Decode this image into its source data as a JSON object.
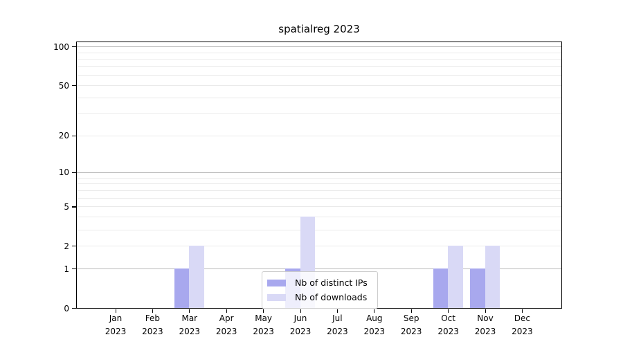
{
  "title": "spatialreg 2023",
  "colors": {
    "bar_ips": "#a8a8ee",
    "bar_downloads": "#d9d9f6",
    "grid_major": "#bbbbbb",
    "grid_minor": "#eaeaea",
    "spine": "#000000",
    "legend_border": "#cccccc"
  },
  "legend": {
    "entries": [
      {
        "label": "Nb of distinct IPs",
        "color": "#a8a8ee",
        "series_key": "ips"
      },
      {
        "label": "Nb of downloads",
        "color": "#d9d9f6",
        "series_key": "downloads"
      }
    ]
  },
  "chart_data": {
    "type": "bar",
    "title": "spatialreg 2023",
    "categories": [
      "Jan 2023",
      "Feb 2023",
      "Mar 2023",
      "Apr 2023",
      "May 2023",
      "Jun 2023",
      "Jul 2023",
      "Aug 2023",
      "Sep 2023",
      "Oct 2023",
      "Nov 2023",
      "Dec 2023"
    ],
    "x_ticks": [
      {
        "month": "Jan",
        "year": "2023"
      },
      {
        "month": "Feb",
        "year": "2023"
      },
      {
        "month": "Mar",
        "year": "2023"
      },
      {
        "month": "Apr",
        "year": "2023"
      },
      {
        "month": "May",
        "year": "2023"
      },
      {
        "month": "Jun",
        "year": "2023"
      },
      {
        "month": "Jul",
        "year": "2023"
      },
      {
        "month": "Aug",
        "year": "2023"
      },
      {
        "month": "Sep",
        "year": "2023"
      },
      {
        "month": "Oct",
        "year": "2023"
      },
      {
        "month": "Nov",
        "year": "2023"
      },
      {
        "month": "Dec",
        "year": "2023"
      }
    ],
    "series": [
      {
        "name": "Nb of distinct IPs",
        "key": "ips",
        "color": "#a8a8ee",
        "values": [
          0,
          0,
          1,
          0,
          0,
          1,
          0,
          0,
          0,
          1,
          1,
          0
        ]
      },
      {
        "name": "Nb of downloads",
        "key": "downloads",
        "color": "#d9d9f6",
        "values": [
          0,
          0,
          2,
          0,
          0,
          4,
          0,
          0,
          0,
          2,
          2,
          0
        ]
      }
    ],
    "y_axis": {
      "scale": "log10(1+y)",
      "ticks": [
        0,
        1,
        2,
        5,
        10,
        20,
        50,
        100
      ],
      "major_gridlines": [
        1,
        10,
        100
      ],
      "minor_gridlines": [
        2,
        3,
        4,
        5,
        6,
        7,
        8,
        9,
        20,
        30,
        40,
        50,
        60,
        70,
        80,
        90
      ],
      "ylim": [
        0,
        108
      ]
    },
    "grid": "horizontal major+minor",
    "legend_position": "lower center",
    "background": "#ffffff"
  }
}
